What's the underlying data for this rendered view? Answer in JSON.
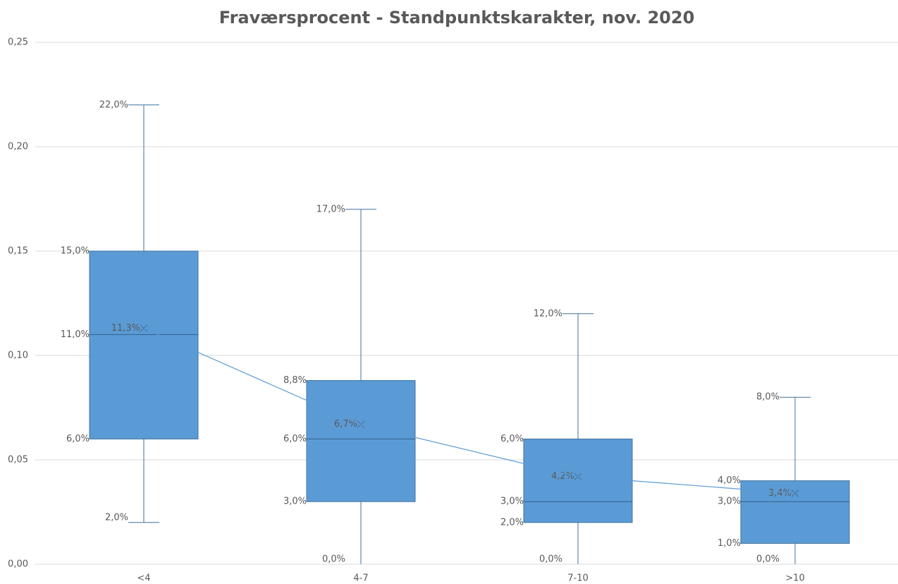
{
  "chart_data": {
    "type": "box",
    "title": "Fraværsprocent - Standpunktskarakter, nov. 2020",
    "categories": [
      "<4",
      "4-7",
      "7-10",
      ">10"
    ],
    "min": {
      "values": [
        0.02,
        0,
        0,
        0
      ],
      "value_labels": [
        "2,0%",
        "0,0%",
        "0,0%",
        "0,0%"
      ]
    },
    "q1": {
      "values": [
        0.06,
        0.03,
        0.02,
        0.01
      ],
      "value_labels": [
        "6,0%",
        "3,0%",
        "2,0%",
        "1,0%"
      ]
    },
    "median": {
      "values": [
        0.11,
        0.06,
        0.03,
        0.03
      ],
      "value_labels": [
        "11,0%",
        "6,0%",
        "3,0%",
        "3,0%"
      ]
    },
    "q3": {
      "values": [
        0.15,
        0.088,
        0.06,
        0.04
      ],
      "value_labels": [
        "15,0%",
        "8,8%",
        "6,0%",
        "4,0%"
      ]
    },
    "max": {
      "values": [
        0.22,
        0.17,
        0.12,
        0.08
      ],
      "value_labels": [
        "22,0%",
        "17,0%",
        "12,0%",
        "8,0%"
      ]
    },
    "mean": {
      "values": [
        0.113,
        0.067,
        0.042,
        0.034
      ],
      "value_labels": [
        "11,3%",
        "6,7%",
        "4,2%",
        "3,4%"
      ]
    },
    "color": "#5b9bd5",
    "edge_color": "#41719c",
    "ylim": [
      0,
      0.25
    ],
    "yticks": [
      {
        "value": 0,
        "label": "0,00"
      },
      {
        "value": 0.05,
        "label": "0,05"
      },
      {
        "value": 0.1,
        "label": "0,10"
      },
      {
        "value": 0.15,
        "label": "0,15"
      },
      {
        "value": 0.2,
        "label": "0,20"
      },
      {
        "value": 0.25,
        "label": "0,25"
      }
    ],
    "grid": true
  }
}
